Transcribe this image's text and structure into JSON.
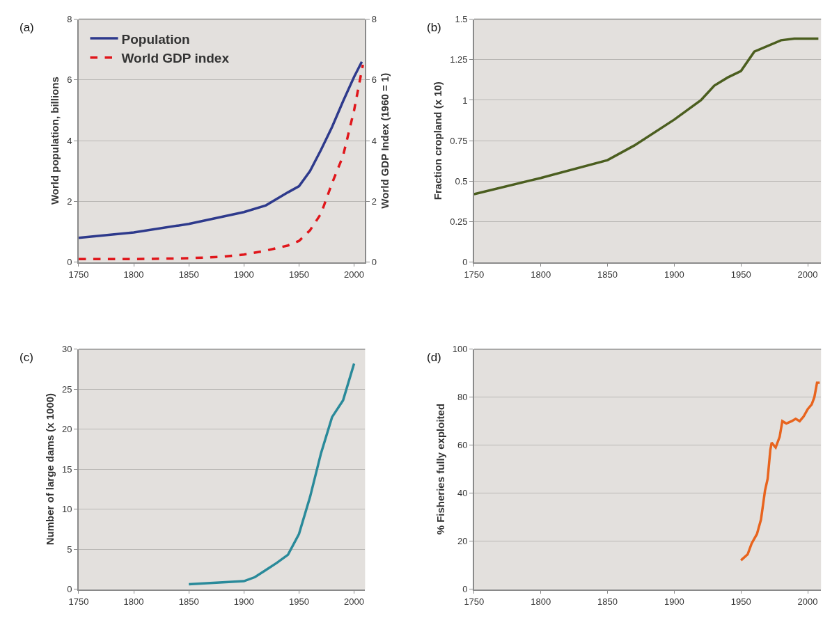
{
  "chart_data": [
    {
      "type": "line",
      "title": "(a)",
      "ylabel": "World population, billions",
      "y2label": "World GDP Index (1960 = 1)",
      "xlim": [
        1750,
        2010
      ],
      "xticks": [
        1750,
        1800,
        1850,
        1900,
        1950,
        2000
      ],
      "ylim": [
        0,
        8
      ],
      "yticks": [
        0,
        2,
        4,
        6,
        8
      ],
      "y2lim": [
        0,
        8
      ],
      "y2ticks": [
        0,
        2,
        4,
        6,
        8
      ],
      "grid": "y",
      "legend": "top left",
      "series": [
        {
          "name": "Population",
          "color": "#2e3a8c",
          "line_style": "solid",
          "x": [
            1750,
            1800,
            1850,
            1900,
            1920,
            1940,
            1950,
            1960,
            1970,
            1980,
            1990,
            2000,
            2007
          ],
          "values": [
            0.8,
            0.98,
            1.26,
            1.65,
            1.87,
            2.3,
            2.5,
            3.0,
            3.7,
            4.45,
            5.3,
            6.1,
            6.6
          ]
        },
        {
          "name": "World GDP index",
          "color": "#e0161b",
          "line_style": "dashed",
          "axis": "y2",
          "x": [
            1750,
            1800,
            1850,
            1880,
            1900,
            1920,
            1940,
            1950,
            1960,
            1970,
            1980,
            1990,
            2000,
            2008
          ],
          "values": [
            0.1,
            0.1,
            0.13,
            0.18,
            0.25,
            0.38,
            0.55,
            0.7,
            1.05,
            1.6,
            2.6,
            3.5,
            5.0,
            6.5
          ]
        }
      ]
    },
    {
      "type": "line",
      "title": "(b)",
      "ylabel": "Fraction cropland (x 10)",
      "xlim": [
        1750,
        2010
      ],
      "xticks": [
        1750,
        1800,
        1850,
        1900,
        1950,
        2000
      ],
      "ylim": [
        0,
        1.5
      ],
      "yticks": [
        0,
        0.25,
        0.5,
        0.75,
        1,
        1.25,
        1.5
      ],
      "grid": "y",
      "series": [
        {
          "color": "#4b5e1f",
          "x": [
            1750,
            1800,
            1850,
            1870,
            1900,
            1920,
            1930,
            1940,
            1950,
            1960,
            1980,
            1990,
            2008
          ],
          "values": [
            0.42,
            0.52,
            0.63,
            0.72,
            0.88,
            1.0,
            1.09,
            1.14,
            1.18,
            1.3,
            1.37,
            1.38,
            1.38
          ]
        }
      ]
    },
    {
      "type": "line",
      "title": "(c)",
      "ylabel": "Number of large dams (x 1000)",
      "xlim": [
        1750,
        2010
      ],
      "xticks": [
        1750,
        1800,
        1850,
        1900,
        1950,
        2000
      ],
      "ylim": [
        0,
        30
      ],
      "yticks": [
        0,
        5,
        10,
        15,
        20,
        25,
        30
      ],
      "grid": "y",
      "series": [
        {
          "color": "#2a8a9a",
          "x": [
            1850,
            1900,
            1910,
            1920,
            1930,
            1940,
            1950,
            1960,
            1970,
            1980,
            1990,
            2000
          ],
          "values": [
            0.6,
            1.0,
            1.5,
            2.4,
            3.3,
            4.3,
            6.9,
            11.5,
            17,
            21.5,
            23.6,
            28.2
          ]
        }
      ]
    },
    {
      "type": "line",
      "title": "(d)",
      "ylabel": "% Fisheries fully exploited",
      "xlim": [
        1750,
        2010
      ],
      "xticks": [
        1750,
        1800,
        1850,
        1900,
        1950,
        2000
      ],
      "ylim": [
        0,
        100
      ],
      "yticks": [
        0,
        20,
        40,
        60,
        80,
        100
      ],
      "grid": "y",
      "series": [
        {
          "color": "#e8641e",
          "x": [
            1950,
            1955,
            1958,
            1962,
            1965,
            1968,
            1970,
            1972,
            1973,
            1976,
            1979,
            1981,
            1984,
            1988,
            1991,
            1994,
            1997,
            2000,
            2003,
            2005,
            2007,
            2009
          ],
          "values": [
            12,
            14.5,
            19,
            23,
            29,
            41,
            46,
            58,
            61,
            59,
            63.5,
            70,
            69,
            70,
            71,
            70,
            72,
            75,
            77,
            80,
            86,
            86
          ]
        }
      ]
    }
  ]
}
